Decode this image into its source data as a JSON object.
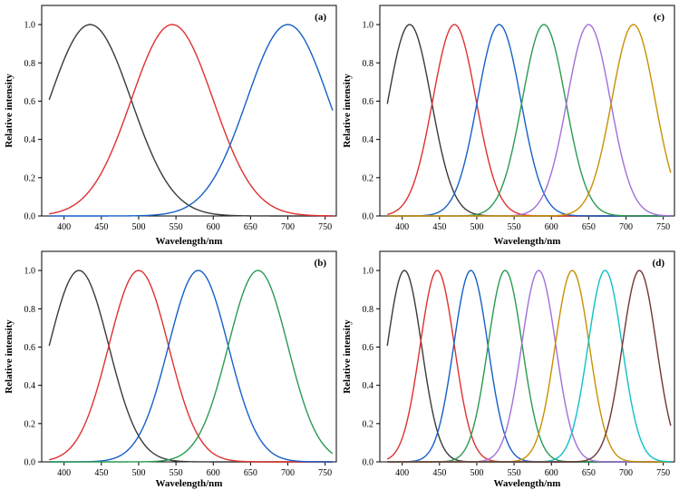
{
  "chart_data": [
    {
      "type": "line",
      "panel_label": "(a)",
      "xlabel": "Wavelength/nm",
      "ylabel": "Relative intensity",
      "xlim": [
        370,
        765
      ],
      "ylim": [
        0,
        1.1
      ],
      "xticks": [
        400,
        450,
        500,
        550,
        600,
        650,
        700,
        750
      ],
      "yticks": [
        0.0,
        0.2,
        0.4,
        0.6,
        0.8,
        1.0
      ],
      "x_range": [
        380,
        760
      ],
      "series": [
        {
          "peak": 435,
          "width": 55,
          "color": "#3a3a3a"
        },
        {
          "peak": 545,
          "width": 55,
          "color": "#e03030"
        },
        {
          "peak": 700,
          "width": 55,
          "color": "#1560c8"
        }
      ]
    },
    {
      "type": "line",
      "panel_label": "(c)",
      "xlabel": "Wavelength/nm",
      "ylabel": "Relative intensity",
      "xlim": [
        370,
        765
      ],
      "ylim": [
        0,
        1.1
      ],
      "xticks": [
        400,
        450,
        500,
        550,
        600,
        650,
        700,
        750
      ],
      "yticks": [
        0.0,
        0.2,
        0.4,
        0.6,
        0.8,
        1.0
      ],
      "x_range": [
        380,
        760
      ],
      "series": [
        {
          "peak": 410,
          "width": 29,
          "color": "#3a3a3a"
        },
        {
          "peak": 470,
          "width": 29,
          "color": "#e03030"
        },
        {
          "peak": 530,
          "width": 29,
          "color": "#1560c8"
        },
        {
          "peak": 590,
          "width": 29,
          "color": "#2a9a50"
        },
        {
          "peak": 650,
          "width": 29,
          "color": "#a070d8"
        },
        {
          "peak": 710,
          "width": 29,
          "color": "#c89000"
        }
      ]
    },
    {
      "type": "line",
      "panel_label": "(b)",
      "xlabel": "Wavelength/nm",
      "ylabel": "Relative intensity",
      "xlim": [
        370,
        765
      ],
      "ylim": [
        0,
        1.1
      ],
      "xticks": [
        400,
        450,
        500,
        550,
        600,
        650,
        700,
        750
      ],
      "yticks": [
        0.0,
        0.2,
        0.4,
        0.6,
        0.8,
        1.0
      ],
      "x_range": [
        380,
        760
      ],
      "series": [
        {
          "peak": 420,
          "width": 40,
          "color": "#3a3a3a"
        },
        {
          "peak": 500,
          "width": 40,
          "color": "#e03030"
        },
        {
          "peak": 580,
          "width": 40,
          "color": "#1560c8"
        },
        {
          "peak": 660,
          "width": 40,
          "color": "#2a9a50"
        }
      ]
    },
    {
      "type": "line",
      "panel_label": "(d)",
      "xlabel": "Wavelength/nm",
      "ylabel": "Relative intensity",
      "xlim": [
        370,
        765
      ],
      "ylim": [
        0,
        1.1
      ],
      "xticks": [
        400,
        450,
        500,
        550,
        600,
        650,
        700,
        750
      ],
      "yticks": [
        0.0,
        0.2,
        0.4,
        0.6,
        0.8,
        1.0
      ],
      "x_range": [
        380,
        760
      ],
      "series": [
        {
          "peak": 403,
          "width": 23,
          "color": "#3a3a3a"
        },
        {
          "peak": 447,
          "width": 23,
          "color": "#e03030"
        },
        {
          "peak": 492,
          "width": 23,
          "color": "#1560c8"
        },
        {
          "peak": 538,
          "width": 23,
          "color": "#2a9a50"
        },
        {
          "peak": 583,
          "width": 23,
          "color": "#a070d8"
        },
        {
          "peak": 628,
          "width": 23,
          "color": "#c89000"
        },
        {
          "peak": 672,
          "width": 23,
          "color": "#10c0c8"
        },
        {
          "peak": 718,
          "width": 23,
          "color": "#703830"
        }
      ]
    }
  ]
}
